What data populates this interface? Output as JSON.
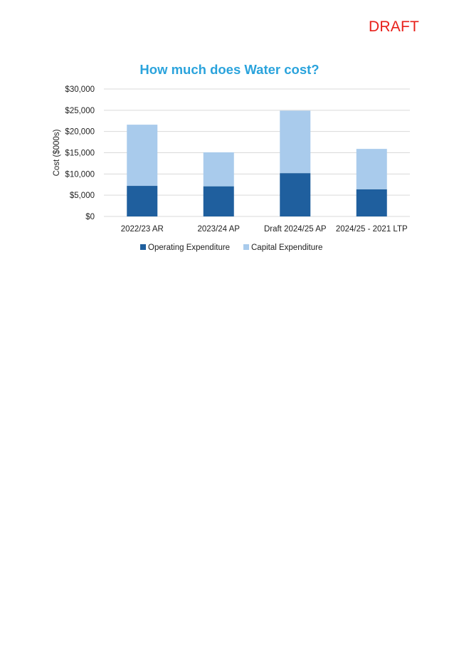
{
  "page": {
    "watermark": "DRAFT"
  },
  "colors": {
    "watermark": "#e8201a",
    "title": "#2aa3dc",
    "grid": "#d9d9d9",
    "operating": "#1f5f9e",
    "capital": "#a9cbec"
  },
  "chart_data": {
    "type": "bar",
    "stacked": true,
    "title": "How much does Water cost?",
    "xlabel": "",
    "ylabel": "Cost ($000s)",
    "ylim": [
      0,
      30000
    ],
    "yticks": [
      0,
      5000,
      10000,
      15000,
      20000,
      25000,
      30000
    ],
    "ytick_labels": [
      "$0",
      "$5,000",
      "$10,000",
      "$15,000",
      "$20,000",
      "$25,000",
      "$30,000"
    ],
    "grid": true,
    "legend_position": "bottom",
    "categories": [
      "2022/23 AR",
      "2023/24 AP",
      "Draft 2024/25 AP",
      "2024/25 - 2021 LTP"
    ],
    "series": [
      {
        "name": "Operating Expenditure",
        "color": "#1f5f9e",
        "values": [
          7200,
          7100,
          10200,
          6400
        ]
      },
      {
        "name": "Capital Expenditure",
        "color": "#a9cbec",
        "values": [
          14400,
          8000,
          14700,
          9500
        ]
      }
    ]
  }
}
